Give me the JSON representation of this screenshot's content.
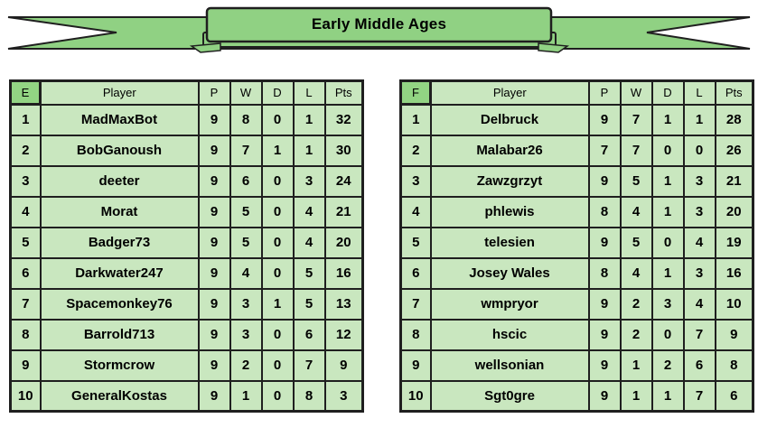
{
  "banner": {
    "title": "Early Middle Ages"
  },
  "colors": {
    "ribbon_green": "#90d183",
    "header_group_green": "#92d483",
    "cell_green": "#c9e7bf",
    "winner_green": "#a9da96",
    "light_green": "#e4f3dd",
    "border_dark": "#1f1f1f"
  },
  "player_header": "Player",
  "stat_headers": [
    "P",
    "W",
    "D",
    "L",
    "Pts"
  ],
  "groups": [
    {
      "letter": "E",
      "rows": [
        {
          "rank": "1",
          "player": "MadMaxBot",
          "stats": [
            "9",
            "8",
            "0",
            "1",
            "32"
          ],
          "highlight": "winner"
        },
        {
          "rank": "2",
          "player": "BobGanoush",
          "stats": [
            "9",
            "7",
            "1",
            "1",
            "30"
          ],
          "highlight": "none"
        },
        {
          "rank": "3",
          "player": "deeter",
          "stats": [
            "9",
            "6",
            "0",
            "3",
            "24"
          ],
          "highlight": "none"
        },
        {
          "rank": "4",
          "player": "Morat",
          "stats": [
            "9",
            "5",
            "0",
            "4",
            "21"
          ],
          "highlight": "none"
        },
        {
          "rank": "5",
          "player": "Badger73",
          "stats": [
            "9",
            "5",
            "0",
            "4",
            "20"
          ],
          "highlight": "none"
        },
        {
          "rank": "6",
          "player": "Darkwater247",
          "stats": [
            "9",
            "4",
            "0",
            "5",
            "16"
          ],
          "highlight": "none"
        },
        {
          "rank": "7",
          "player": "Spacemonkey76",
          "stats": [
            "9",
            "3",
            "1",
            "5",
            "13"
          ],
          "highlight": "none"
        },
        {
          "rank": "8",
          "player": "Barrold713",
          "stats": [
            "9",
            "3",
            "0",
            "6",
            "12"
          ],
          "highlight": "none"
        },
        {
          "rank": "9",
          "player": "Stormcrow",
          "stats": [
            "9",
            "2",
            "0",
            "7",
            "9"
          ],
          "highlight": "none"
        },
        {
          "rank": "10",
          "player": "GeneralKostas",
          "stats": [
            "9",
            "1",
            "0",
            "8",
            "3"
          ],
          "highlight": "light"
        }
      ]
    },
    {
      "letter": "F",
      "rows": [
        {
          "rank": "1",
          "player": "Delbruck",
          "stats": [
            "9",
            "7",
            "1",
            "1",
            "28"
          ],
          "highlight": "winner"
        },
        {
          "rank": "2",
          "player": "Malabar26",
          "stats": [
            "7",
            "7",
            "0",
            "0",
            "26"
          ],
          "highlight": "none"
        },
        {
          "rank": "3",
          "player": "Zawzgrzyt",
          "stats": [
            "9",
            "5",
            "1",
            "3",
            "21"
          ],
          "highlight": "none"
        },
        {
          "rank": "4",
          "player": "phlewis",
          "stats": [
            "8",
            "4",
            "1",
            "3",
            "20"
          ],
          "highlight": "none"
        },
        {
          "rank": "5",
          "player": "telesien",
          "stats": [
            "9",
            "5",
            "0",
            "4",
            "19"
          ],
          "highlight": "none"
        },
        {
          "rank": "6",
          "player": "Josey Wales",
          "stats": [
            "8",
            "4",
            "1",
            "3",
            "16"
          ],
          "highlight": "none"
        },
        {
          "rank": "7",
          "player": "wmpryor",
          "stats": [
            "9",
            "2",
            "3",
            "4",
            "10"
          ],
          "highlight": "none"
        },
        {
          "rank": "8",
          "player": "hscic",
          "stats": [
            "9",
            "2",
            "0",
            "7",
            "9"
          ],
          "highlight": "none"
        },
        {
          "rank": "9",
          "player": "wellsonian",
          "stats": [
            "9",
            "1",
            "2",
            "6",
            "8"
          ],
          "highlight": "none"
        },
        {
          "rank": "10",
          "player": "Sgt0gre",
          "stats": [
            "9",
            "1",
            "1",
            "7",
            "6"
          ],
          "highlight": "none"
        }
      ]
    }
  ]
}
